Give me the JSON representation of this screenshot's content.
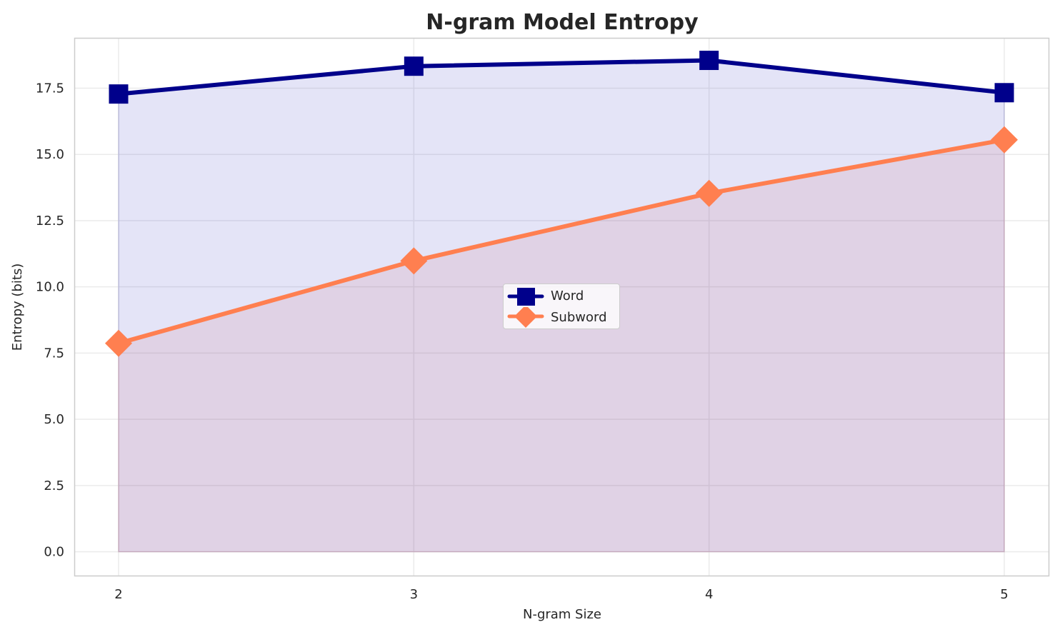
{
  "chart_data": {
    "type": "line",
    "title": "N-gram Model Entropy",
    "xlabel": "N-gram Size",
    "ylabel": "Entropy (bits)",
    "x": [
      2,
      3,
      4,
      5
    ],
    "x_tick_labels": [
      "2",
      "3",
      "4",
      "5"
    ],
    "y_ticks": [
      0.0,
      2.5,
      5.0,
      7.5,
      10.0,
      12.5,
      15.0,
      17.5
    ],
    "y_tick_labels": [
      "0.0",
      "2.5",
      "5.0",
      "7.5",
      "10.0",
      "12.5",
      "15.0",
      "17.5"
    ],
    "xlim": [
      1.85,
      5.15
    ],
    "ylim": [
      -0.9,
      19.4
    ],
    "grid": true,
    "legend_position": "center",
    "series": [
      {
        "name": "Word",
        "values": [
          17.28,
          18.33,
          18.55,
          17.33
        ],
        "color": "#00008b",
        "marker": "square",
        "fill": true,
        "fill_color": "#e4e4f3"
      },
      {
        "name": "Subword",
        "values": [
          7.87,
          10.98,
          13.53,
          15.55
        ],
        "color": "#ff7f50",
        "marker": "diamond",
        "fill": true,
        "fill_color": "#e6d8e2"
      }
    ]
  },
  "legend": {
    "items": [
      {
        "label": "Word"
      },
      {
        "label": "Subword"
      }
    ]
  }
}
